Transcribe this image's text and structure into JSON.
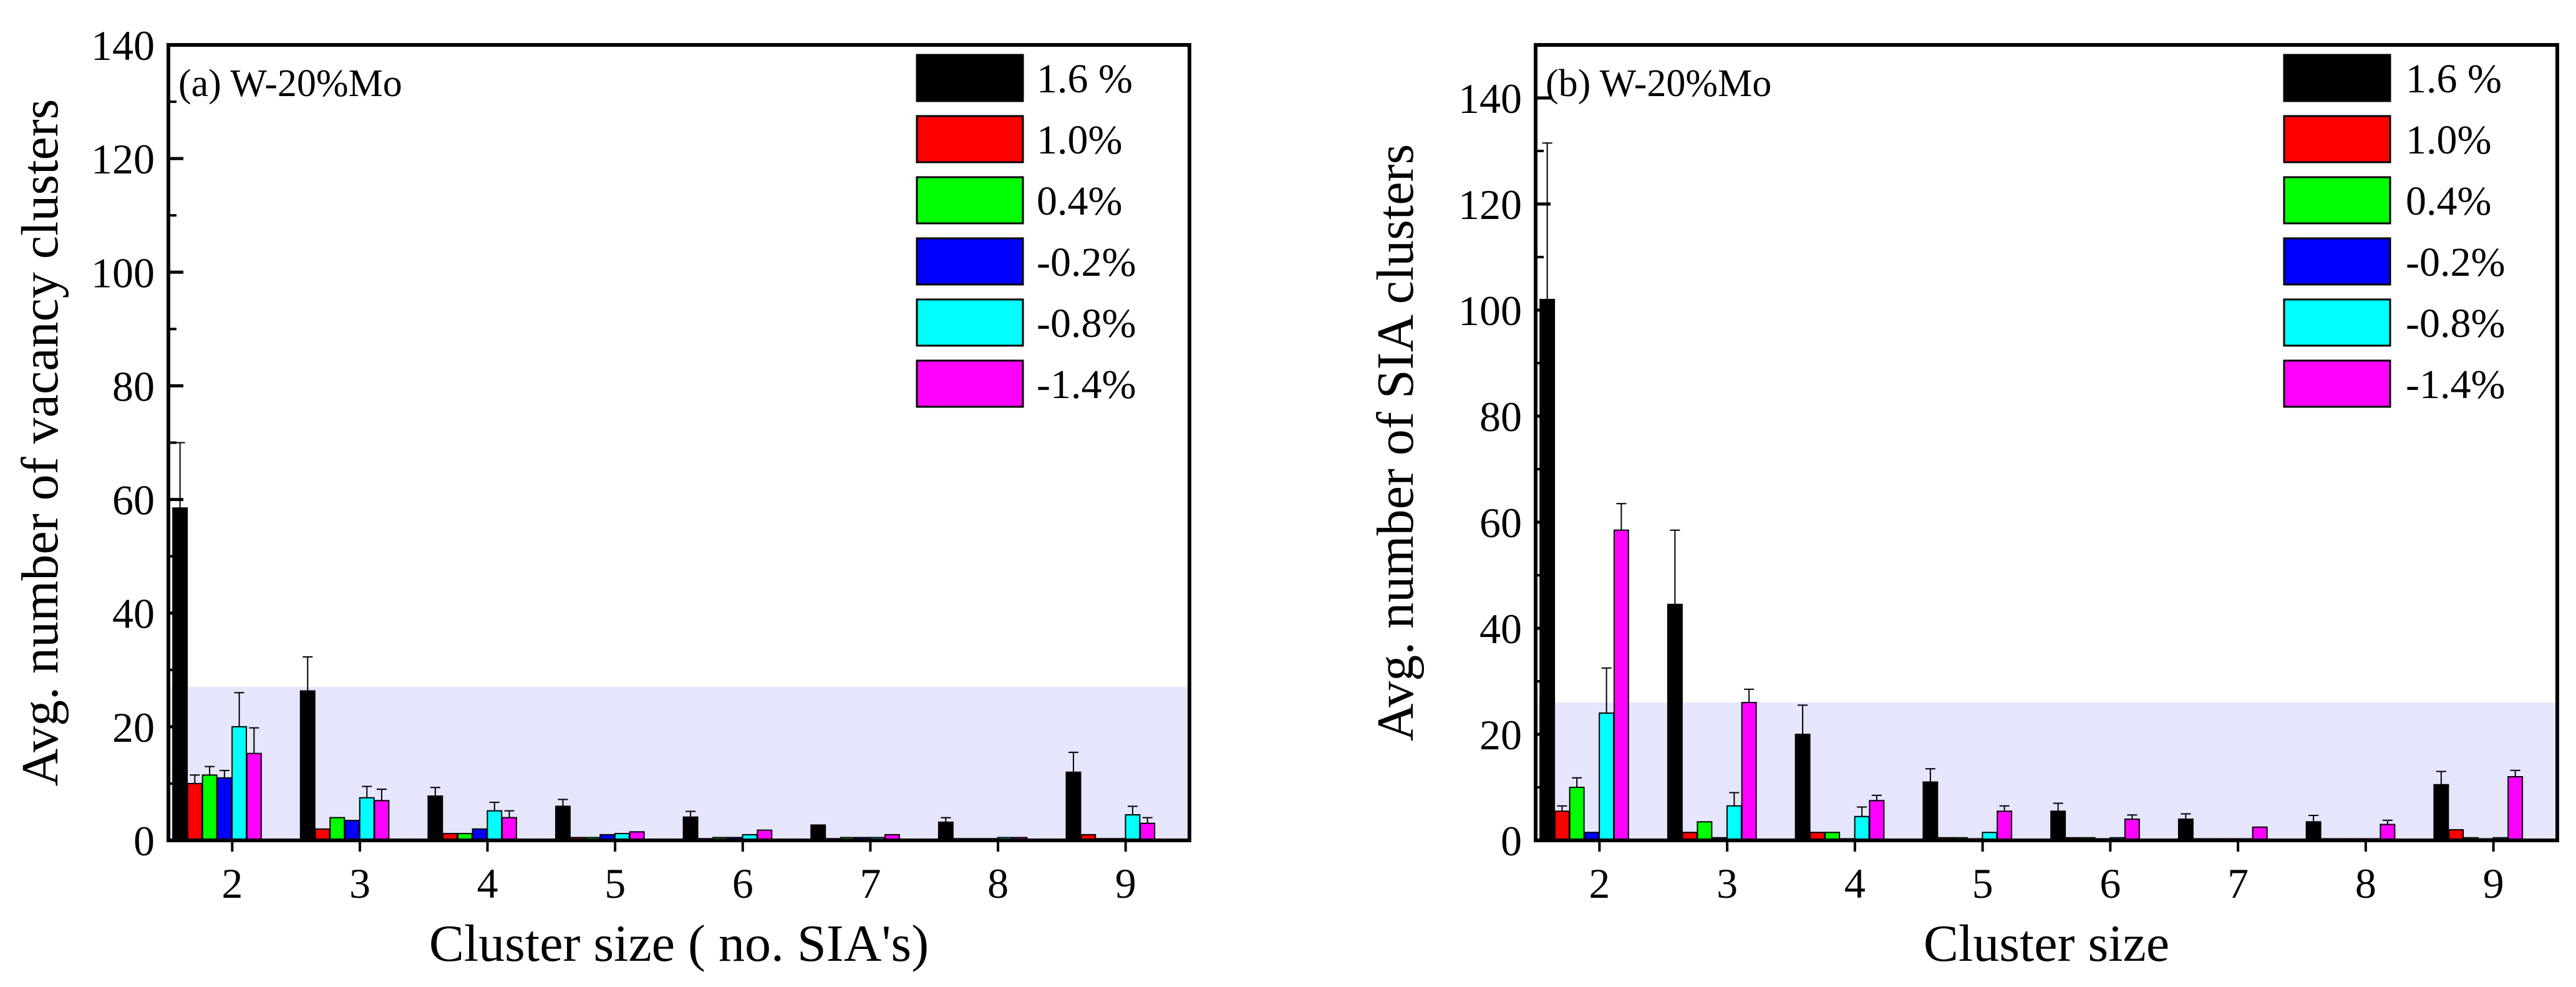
{
  "chart_data": [
    {
      "type": "bar",
      "panel_label": "(a) W-20%Mo",
      "xlabel": "Cluster size ( no. SIA's)",
      "ylabel": "Avg. number of vacancy clusters",
      "ylim": [
        0,
        140
      ],
      "yticks": [
        "0",
        "20",
        "40",
        "60",
        "80",
        "100",
        "120",
        "140"
      ],
      "categories": [
        "2",
        "3",
        "4",
        "5",
        "6",
        "7",
        "8",
        "9"
      ],
      "highlight_band": [
        0,
        27
      ],
      "legend_position": "top-right",
      "series": [
        {
          "name": "1.6 %",
          "color": "#000000",
          "values": [
            58.5,
            26.3,
            7.8,
            6.0,
            4.1,
            2.7,
            3.2,
            12.0
          ],
          "errors": [
            11.5,
            6.0,
            1.5,
            1.2,
            1.0,
            0.5,
            0.8,
            3.5
          ]
        },
        {
          "name": "1.0%",
          "color": "#ff0000",
          "values": [
            10.0,
            2.0,
            1.2,
            0.5,
            0.3,
            0.3,
            0.3,
            1.0
          ],
          "errors": [
            1.5,
            0.5,
            0.3,
            0.2,
            0.1,
            0.1,
            0.1,
            0.2
          ]
        },
        {
          "name": "0.4%",
          "color": "#00ff00",
          "values": [
            11.5,
            4.0,
            1.2,
            0.5,
            0.5,
            0.5,
            0.3,
            0.3
          ],
          "errors": [
            1.5,
            0.6,
            0.3,
            0.2,
            0.2,
            0.2,
            0.1,
            0.1
          ]
        },
        {
          "name": "-0.2%",
          "color": "#0000ff",
          "values": [
            11.0,
            3.5,
            2.0,
            1.0,
            0.5,
            0.5,
            0.3,
            0.3
          ],
          "errors": [
            1.3,
            0.5,
            0.3,
            0.2,
            0.2,
            0.2,
            0.1,
            0.1
          ]
        },
        {
          "name": "-0.8%",
          "color": "#00ffff",
          "values": [
            20.0,
            7.5,
            5.2,
            1.2,
            1.0,
            0.5,
            0.5,
            4.5
          ],
          "errors": [
            6.0,
            2.0,
            1.5,
            0.5,
            0.4,
            0.2,
            0.2,
            1.5
          ]
        },
        {
          "name": "-1.4%",
          "color": "#ff00ff",
          "values": [
            15.3,
            7.0,
            4.0,
            1.5,
            1.8,
            1.0,
            0.5,
            3.0
          ],
          "errors": [
            4.5,
            2.0,
            1.2,
            0.5,
            0.6,
            0.4,
            0.3,
            1.0
          ]
        }
      ]
    },
    {
      "type": "bar",
      "panel_label": "(b) W-20%Mo",
      "xlabel": "Cluster size",
      "ylabel": "Avg. number of SIA clusters",
      "ylim": [
        0,
        150
      ],
      "yticks": [
        "0",
        "20",
        "40",
        "60",
        "80",
        "100",
        "120",
        "140"
      ],
      "categories": [
        "2",
        "3",
        "4",
        "5",
        "6",
        "7",
        "8",
        "9"
      ],
      "highlight_band": [
        0,
        26
      ],
      "legend_position": "top-right",
      "series": [
        {
          "name": "1.6 %",
          "color": "#000000",
          "values": [
            102.0,
            44.5,
            20.0,
            11.0,
            5.5,
            4.0,
            3.5,
            10.5
          ],
          "errors": [
            29.5,
            14.0,
            5.5,
            2.5,
            1.5,
            1.0,
            1.2,
            2.5
          ]
        },
        {
          "name": "1.0%",
          "color": "#ff0000",
          "values": [
            5.5,
            1.5,
            1.5,
            0.5,
            0.5,
            0.3,
            0.3,
            2.0
          ],
          "errors": [
            1.0,
            0.3,
            0.3,
            0.2,
            0.2,
            0.1,
            0.1,
            0.5
          ]
        },
        {
          "name": "0.4%",
          "color": "#00ff00",
          "values": [
            10.0,
            3.5,
            1.5,
            0.5,
            0.5,
            0.3,
            0.3,
            0.5
          ],
          "errors": [
            1.8,
            0.6,
            0.3,
            0.2,
            0.2,
            0.1,
            0.1,
            0.2
          ]
        },
        {
          "name": "-0.2%",
          "color": "#0000ff",
          "values": [
            1.5,
            0.5,
            0.3,
            0.3,
            0.3,
            0.3,
            0.3,
            0.3
          ],
          "errors": [
            0.5,
            0.2,
            0.1,
            0.1,
            0.1,
            0.1,
            0.1,
            0.1
          ]
        },
        {
          "name": "-0.8%",
          "color": "#00ffff",
          "values": [
            24.0,
            6.5,
            4.5,
            1.5,
            0.5,
            0.3,
            0.3,
            0.5
          ],
          "errors": [
            8.5,
            2.5,
            1.8,
            0.6,
            0.2,
            0.1,
            0.1,
            0.2
          ]
        },
        {
          "name": "-1.4%",
          "color": "#ff00ff",
          "values": [
            58.5,
            26.0,
            7.5,
            5.5,
            4.0,
            2.5,
            3.0,
            12.0
          ],
          "errors": [
            5.0,
            2.5,
            1.0,
            1.0,
            0.8,
            0.5,
            0.8,
            1.2
          ]
        }
      ]
    }
  ]
}
